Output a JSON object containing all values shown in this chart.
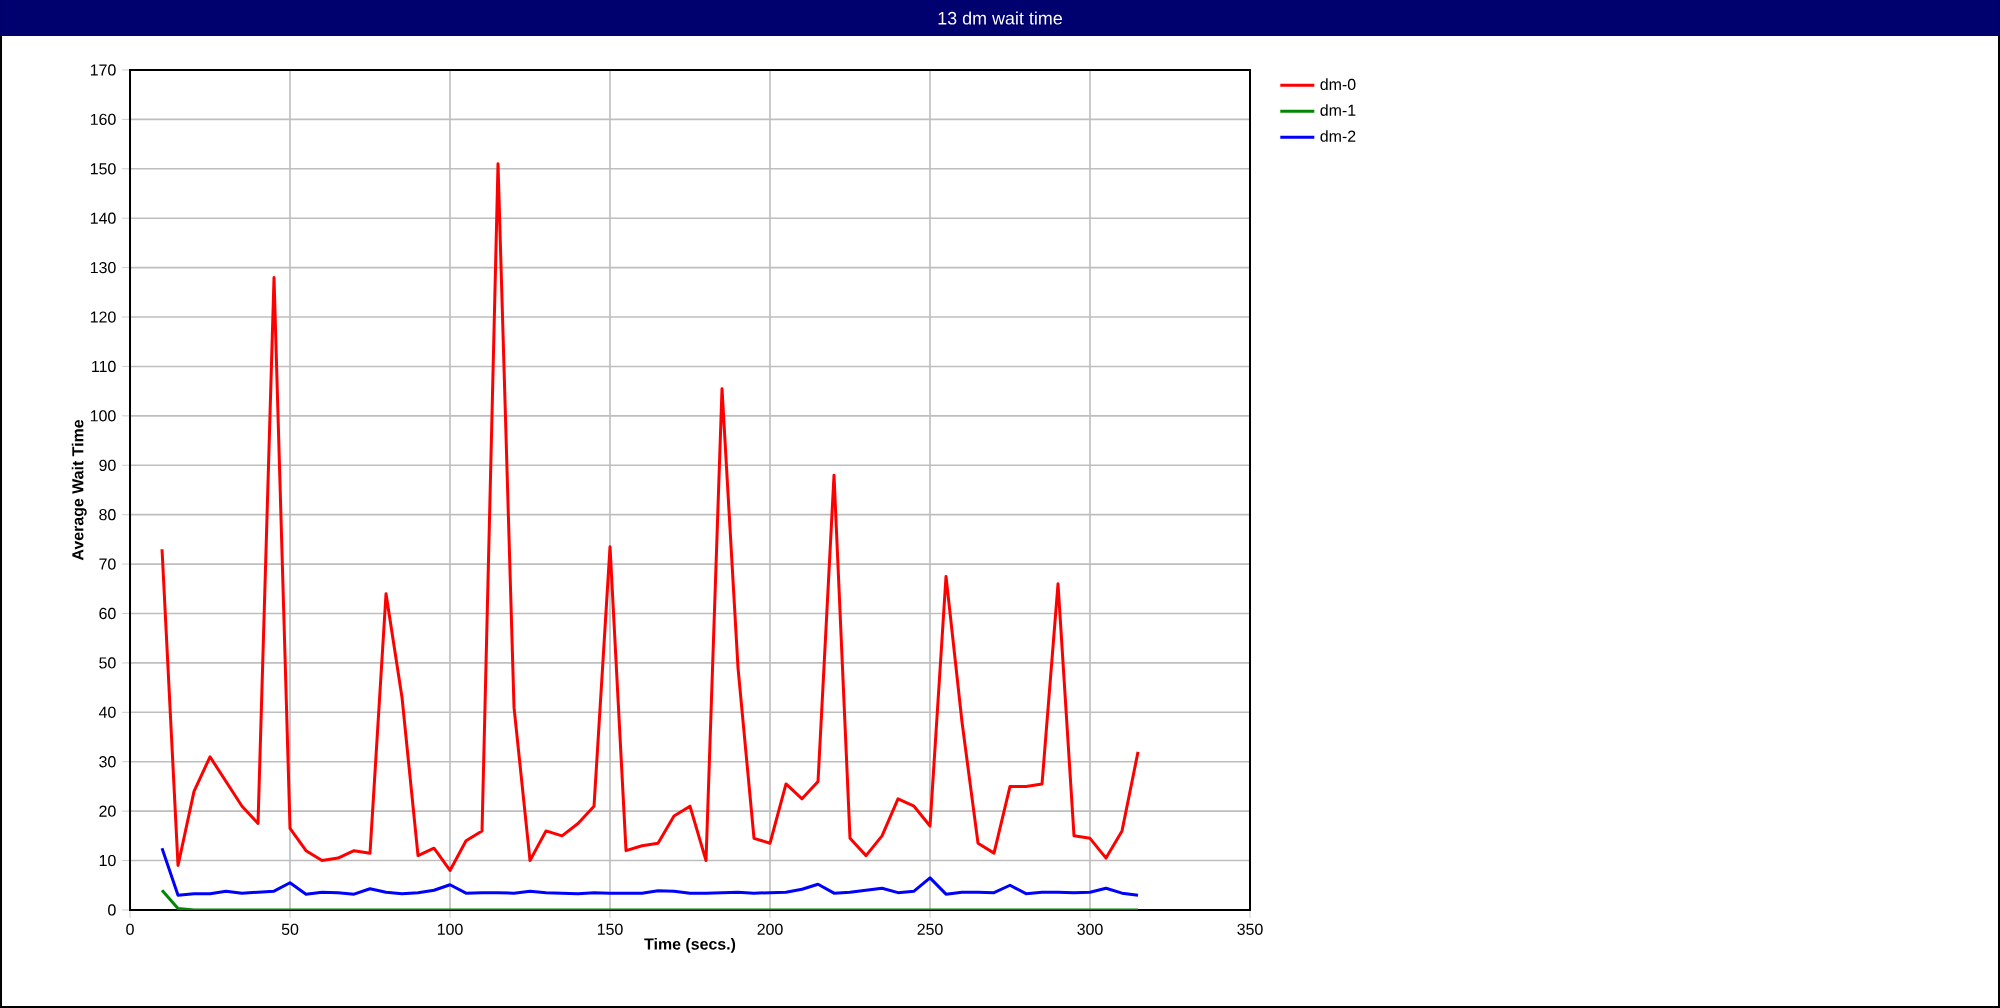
{
  "chart_data": {
    "type": "line",
    "title": "13 dm wait time",
    "xlabel": "Time (secs.)",
    "ylabel": "Average Wait Time",
    "x": [
      10,
      15,
      20,
      25,
      30,
      35,
      40,
      45,
      50,
      55,
      60,
      65,
      70,
      75,
      80,
      85,
      90,
      95,
      100,
      105,
      110,
      115,
      120,
      125,
      130,
      135,
      140,
      145,
      150,
      155,
      160,
      165,
      170,
      175,
      180,
      185,
      190,
      195,
      200,
      205,
      210,
      215,
      220,
      225,
      230,
      235,
      240,
      245,
      250,
      255,
      260,
      265,
      270,
      275,
      280,
      285,
      290,
      295,
      300,
      305,
      310,
      315
    ],
    "series": [
      {
        "name": "dm-0",
        "color": "#ff0000",
        "values": [
          73,
          9,
          24,
          31,
          26,
          21,
          17.5,
          128,
          16.5,
          12,
          10,
          10.5,
          12,
          11.5,
          64,
          43,
          11,
          12.5,
          8,
          14,
          16,
          151,
          41,
          10,
          16,
          15,
          17.5,
          21,
          73.5,
          12,
          13,
          13.5,
          19,
          21,
          10,
          105.5,
          49,
          14.5,
          13.5,
          25.5,
          22.5,
          26,
          88,
          14.5,
          11,
          15,
          22.5,
          21,
          17,
          67.5,
          38,
          13.5,
          11.5,
          25,
          25,
          25.5,
          66,
          15,
          14.5,
          10.5,
          16,
          32
        ]
      },
      {
        "name": "dm-1",
        "color": "#008800",
        "values": [
          4,
          0.3,
          0,
          0,
          0,
          0,
          0,
          0,
          0,
          0,
          0,
          0,
          0,
          0,
          0,
          0,
          0,
          0,
          0,
          0,
          0,
          0,
          0,
          0,
          0,
          0,
          0,
          0,
          0,
          0,
          0,
          0,
          0,
          0,
          0,
          0,
          0,
          0,
          0,
          0,
          0,
          0,
          0,
          0,
          0,
          0,
          0,
          0,
          0,
          0,
          0,
          0,
          0,
          0,
          0,
          0,
          0,
          0,
          0,
          0,
          0,
          0
        ]
      },
      {
        "name": "dm-2",
        "color": "#0000ff",
        "values": [
          12.5,
          3,
          3.3,
          3.3,
          3.8,
          3.4,
          3.6,
          3.8,
          5.5,
          3.2,
          3.6,
          3.5,
          3.2,
          4.3,
          3.6,
          3.3,
          3.5,
          4,
          5.1,
          3.4,
          3.5,
          3.5,
          3.4,
          3.8,
          3.5,
          3.4,
          3.3,
          3.5,
          3.4,
          3.4,
          3.4,
          3.9,
          3.8,
          3.4,
          3.4,
          3.5,
          3.6,
          3.4,
          3.5,
          3.6,
          4.2,
          5.2,
          3.4,
          3.6,
          4,
          4.4,
          3.5,
          3.8,
          6.5,
          3.2,
          3.6,
          3.6,
          3.5,
          5,
          3.3,
          3.6,
          3.6,
          3.5,
          3.6,
          4.4,
          3.4,
          3
        ]
      }
    ],
    "xlim": [
      0,
      350
    ],
    "xticks": [
      0,
      50,
      100,
      150,
      200,
      250,
      300,
      350
    ],
    "ylim": [
      0,
      170
    ],
    "yticks": [
      0,
      10,
      20,
      30,
      40,
      50,
      60,
      70,
      80,
      90,
      100,
      110,
      120,
      130,
      140,
      150,
      160,
      170
    ],
    "grid": true,
    "legend": "top right",
    "marker": "none",
    "line_style": "solid"
  }
}
